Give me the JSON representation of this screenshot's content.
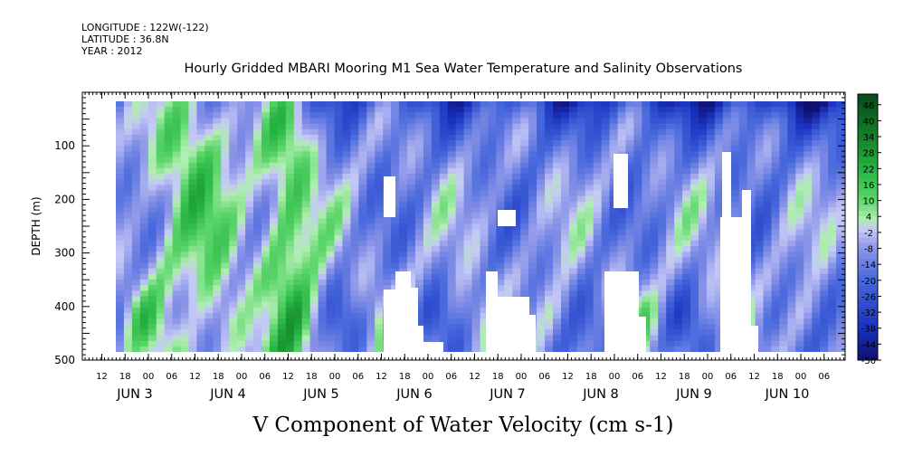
{
  "header": {
    "longitude": "LONGITUDE : 122W(-122)",
    "latitude": "LATITUDE : 36.8N",
    "year": "YEAR : 2012"
  },
  "chart_data": {
    "type": "heatmap",
    "title": "Hourly Gridded MBARI Mooring M1 Sea Water Temperature and Salinity Observations",
    "xlabel": "V Component of Water Velocity (cm s-1)",
    "ylabel": "DEPTH (m)",
    "ylim": [
      500,
      0
    ],
    "y_ticks": [
      100,
      200,
      300,
      400,
      500
    ],
    "hour_ticks": [
      "12",
      "18",
      "00",
      "06",
      "12",
      "18",
      "00",
      "06",
      "12",
      "18",
      "00",
      "06",
      "12",
      "18",
      "00",
      "06",
      "12",
      "18",
      "00",
      "06",
      "12",
      "18",
      "00",
      "06",
      "12",
      "18",
      "00",
      "06",
      "12",
      "18",
      "00",
      "06"
    ],
    "date_labels": [
      "JUN 3",
      "JUN 4",
      "JUN 5",
      "JUN 6",
      "JUN 7",
      "JUN 8",
      "JUN 9",
      "JUN 10"
    ],
    "colorbar": {
      "ticks": [
        46,
        40,
        34,
        28,
        22,
        16,
        10,
        4,
        -2,
        -8,
        -14,
        -20,
        -26,
        -32,
        -38,
        -44,
        -50
      ],
      "range": [
        -50,
        50
      ]
    },
    "no_data_color": "#ffffff"
  }
}
